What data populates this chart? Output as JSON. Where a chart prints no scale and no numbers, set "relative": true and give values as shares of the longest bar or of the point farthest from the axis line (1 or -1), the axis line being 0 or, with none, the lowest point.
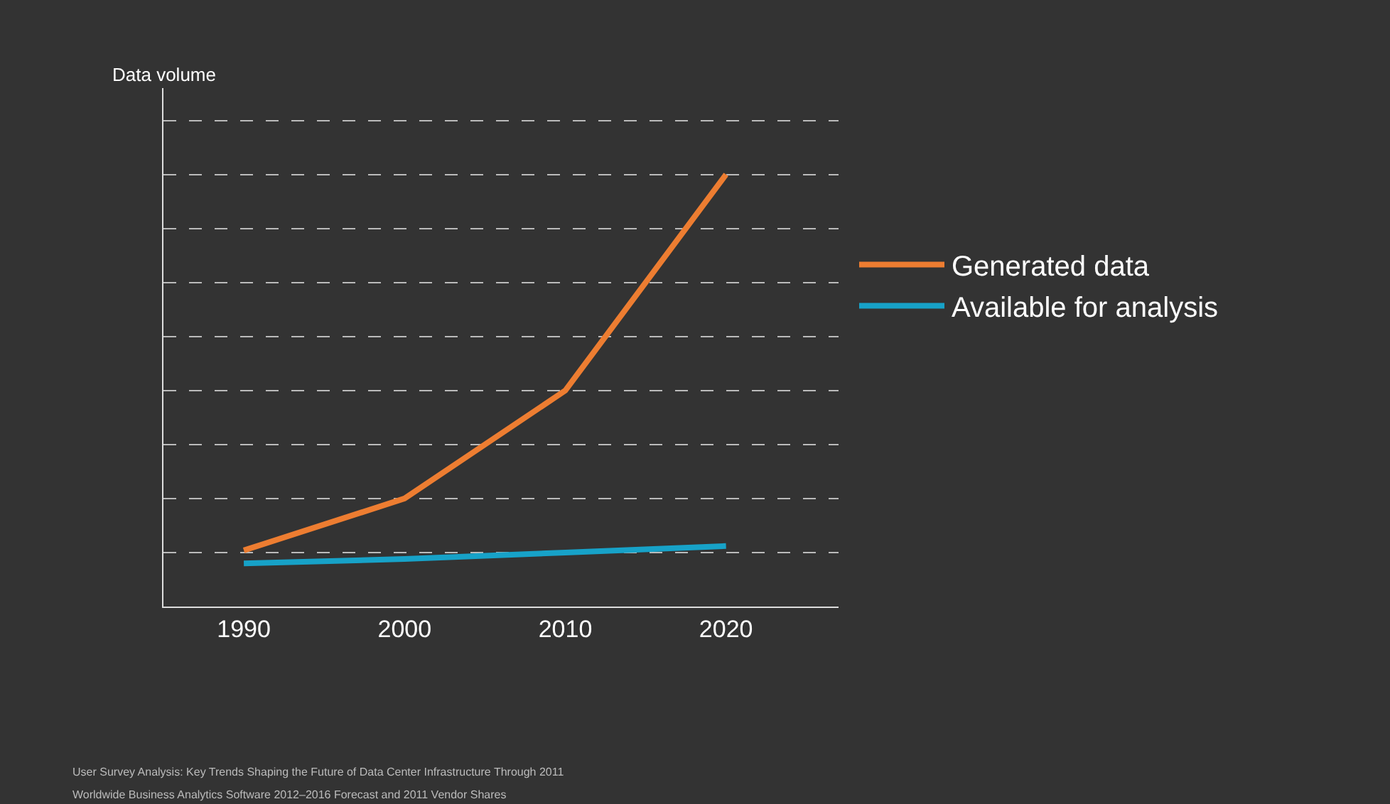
{
  "chart_data": {
    "type": "line",
    "ylabel": "Data volume",
    "relative": true,
    "categories": [
      "1990",
      "2000",
      "2010",
      "2020"
    ],
    "series": [
      {
        "name": "Generated data",
        "color": "#ed7d31",
        "values": [
          0.13,
          0.25,
          0.5,
          1
        ]
      },
      {
        "name": "Available for analysis",
        "color": "#17a2c8",
        "values": [
          0.1,
          0.11,
          0.125,
          0.14
        ]
      }
    ],
    "grid": "y",
    "legend": "right",
    "marker": "none",
    "line_style": "solid",
    "annotations": [
      "User Survey Analysis: Key Trends Shaping the Future of Data Center Infrastructure Through 2011",
      "Worldwide Business Analytics Software 2012–2016 Forecast and 2011 Vendor Shares"
    ]
  }
}
